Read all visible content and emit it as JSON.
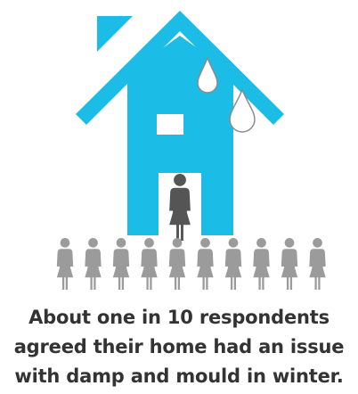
{
  "colors": {
    "house": "#1bbde6",
    "figure_highlight": "#555555",
    "figure_others": "#9b9b9b",
    "drop_fill": "#ffffff",
    "drop_stroke": "#8a8a8a",
    "text": "#333333",
    "background": "#ffffff"
  },
  "icons": {
    "house": "house-icon",
    "drop": "water-drop-icon",
    "person": "person-icon"
  },
  "respondents": {
    "total": 10,
    "highlighted": 1
  },
  "caption": {
    "line1": "About one in 10 respondents",
    "line2": "agreed their home had an issue",
    "line3": "with damp and mould in winter."
  }
}
